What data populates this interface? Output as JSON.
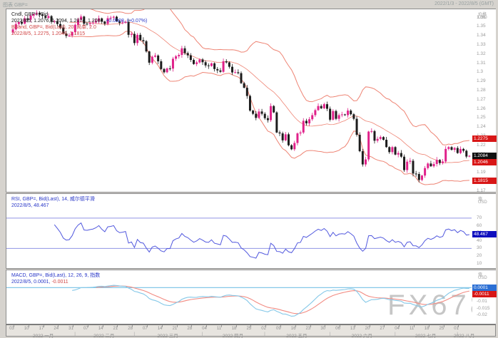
{
  "window": {
    "title": "图表 GBP=",
    "date_range": "2022/1/3 - 2022/8/5 (GMT)"
  },
  "watermark": "FX678",
  "legends": {
    "main_line1": "Cndl, GBP=, Bid",
    "main_line2_ohlc": "2022/8/5, 1.2076, 1.2094, 1.2074, 1.2084, ",
    "main_line2_change": "+0.0008, (+0.07%)",
    "bb_line1": "BBand, GBP=, Bid(Last), 20, 简单, 2.0",
    "bb_line2": "2022/8/5, 1.2275, 1.2046, 1.1815",
    "rsi_line1": "RSI, GBP=, Bid(Last), 14, 威尔德平滑",
    "rsi_line2": "2022/8/5, 48.467",
    "macd_line1": "MACD, GBP=, Bid(Last), 12, 26, 9, 指数",
    "macd_line2_macd": "2022/8/5, 0.0001, ",
    "macd_line2_signal": "-0.0011"
  },
  "axes": {
    "price_header_line1": "价格",
    "price_header_line2": "USD",
    "value_header_line1": "值",
    "value_header_line2": "USD"
  },
  "colors": {
    "candle_up": "#e0218a",
    "candle_down": "#1c1c1c",
    "bollinger": "#ee8474",
    "rsi_line": "#5158de",
    "rsi_level": "#9095e4",
    "macd_line": "#85c8e8",
    "signal_line": "#f28b82",
    "label_red_bg": "#d81616",
    "label_black_bg": "#101010",
    "label_blue_bg": "#0f0fbe",
    "label_macdblue_bg": "#2b6fd4"
  },
  "chart_data": {
    "type": "candlestick",
    "symbol": "GBP=",
    "interval": "daily",
    "x_range": "2022-01-03 to 2022-08-05",
    "title": "GBP= daily with BBand(20,2), RSI(14), MACD(12,26,9)",
    "closes": [
      1.347,
      1.3528,
      1.355,
      1.3532,
      1.359,
      1.3575,
      1.362,
      1.3638,
      1.3652,
      1.363,
      1.3618,
      1.3596,
      1.3615,
      1.3552,
      1.356,
      1.3528,
      1.349,
      1.3425,
      1.3398,
      1.3402,
      1.344,
      1.352,
      1.3575,
      1.361,
      1.3532,
      1.3528,
      1.3538,
      1.3545,
      1.3562,
      1.359,
      1.3555,
      1.353,
      1.3592,
      1.3598,
      1.3608,
      1.356,
      1.354,
      1.3545,
      1.3552,
      1.341,
      1.342,
      1.332,
      1.341,
      1.3352,
      1.334,
      1.3228,
      1.3105,
      1.317,
      1.3183,
      1.312,
      1.3035,
      1.3,
      1.3042,
      1.304,
      1.3148,
      1.3175,
      1.319,
      1.3262,
      1.321,
      1.3185,
      1.3135,
      1.309,
      1.3108,
      1.314,
      1.311,
      1.3075,
      1.3068,
      1.3098,
      1.3035,
      1.302,
      1.3005,
      1.312,
      1.3108,
      1.306,
      1.2998,
      1.3,
      1.299,
      1.288,
      1.283,
      1.274,
      1.258,
      1.2545,
      1.25,
      1.257,
      1.2545,
      1.2497,
      1.2475,
      1.263,
      1.256,
      1.234,
      1.233,
      1.2254,
      1.232,
      1.22,
      1.2156,
      1.2225,
      1.233,
      1.234,
      1.2468,
      1.244,
      1.2485,
      1.253,
      1.2585,
      1.263,
      1.2605,
      1.265,
      1.26,
      1.248,
      1.2575,
      1.249,
      1.253,
      1.2538,
      1.253,
      1.258,
      1.254,
      1.249,
      1.2315,
      1.2135,
      1.199,
      1.2045,
      1.235,
      1.2355,
      1.225,
      1.227,
      1.229,
      1.226,
      1.218,
      1.2125,
      1.218,
      1.2098,
      1.2115,
      1.2075,
      1.1928,
      1.202,
      1.203,
      1.189,
      1.1885,
      1.182,
      1.1868,
      1.195,
      1.2,
      1.197,
      1.1995,
      1.204,
      1.2005,
      1.2022,
      1.216,
      1.218,
      1.215,
      1.217,
      1.2115,
      1.216,
      1.214,
      1.2076,
      1.2084
    ],
    "indicators": {
      "bollinger": {
        "period": 20,
        "deviations": 2.0,
        "type_label": "简单",
        "last_upper": 1.2275,
        "last_middle": 1.2046,
        "last_lower": 1.1815
      },
      "rsi": {
        "period": 14,
        "method": "威尔德平滑",
        "last": 48.467,
        "levels": [
          70,
          30
        ]
      },
      "macd": {
        "fast": 12,
        "slow": 26,
        "signal": 9,
        "method": "指数",
        "last_macd": 0.0001,
        "last_signal": -0.0011
      }
    },
    "price_axis": {
      "ylim": [
        1.169,
        1.369
      ],
      "ticks": [
        1.36,
        1.35,
        1.34,
        1.33,
        1.32,
        1.31,
        1.3,
        1.29,
        1.28,
        1.27,
        1.26,
        1.25,
        1.24,
        1.23,
        1.22,
        1.21,
        1.2,
        1.19,
        1.18,
        1.17
      ],
      "last_price": 1.2084
    },
    "rsi_axis": {
      "ylim": [
        5,
        100
      ],
      "ticks": [
        70,
        60,
        50,
        40,
        30,
        20,
        10
      ]
    },
    "macd_axis": {
      "ylim": [
        -0.026,
        0.012
      ],
      "ticks": [
        -0.005,
        -0.01,
        -0.015,
        -0.02
      ]
    },
    "time_axis": {
      "months": [
        {
          "label": "2022 一月",
          "start": 0,
          "end": 21
        },
        {
          "label": "2022 二月",
          "start": 21,
          "end": 41
        },
        {
          "label": "2022 三月",
          "start": 41,
          "end": 64
        },
        {
          "label": "2022 四月",
          "start": 64,
          "end": 85
        },
        {
          "label": "2022 五月",
          "start": 85,
          "end": 107
        },
        {
          "label": "2022 六月",
          "start": 107,
          "end": 129
        },
        {
          "label": "2022 七月",
          "start": 129,
          "end": 150
        },
        {
          "label": "2022 八月",
          "start": 150,
          "end": 155
        }
      ],
      "week_labels": [
        [
          0,
          "03"
        ],
        [
          5,
          "10"
        ],
        [
          10,
          "17"
        ],
        [
          15,
          "24"
        ],
        [
          20,
          "31"
        ],
        [
          25,
          "07"
        ],
        [
          30,
          "14"
        ],
        [
          35,
          "21"
        ],
        [
          40,
          "28"
        ],
        [
          45,
          "07"
        ],
        [
          50,
          "14"
        ],
        [
          55,
          "21"
        ],
        [
          60,
          "28"
        ],
        [
          65,
          "04"
        ],
        [
          70,
          "11"
        ],
        [
          75,
          "18"
        ],
        [
          80,
          "25"
        ],
        [
          85,
          "02"
        ],
        [
          90,
          "09"
        ],
        [
          95,
          "16"
        ],
        [
          100,
          "23"
        ],
        [
          105,
          "30"
        ],
        [
          110,
          "06"
        ],
        [
          115,
          "13"
        ],
        [
          120,
          "20"
        ],
        [
          125,
          "27"
        ],
        [
          130,
          "04"
        ],
        [
          135,
          "11"
        ],
        [
          140,
          "18"
        ],
        [
          145,
          "25"
        ],
        [
          150,
          "01"
        ]
      ]
    }
  }
}
